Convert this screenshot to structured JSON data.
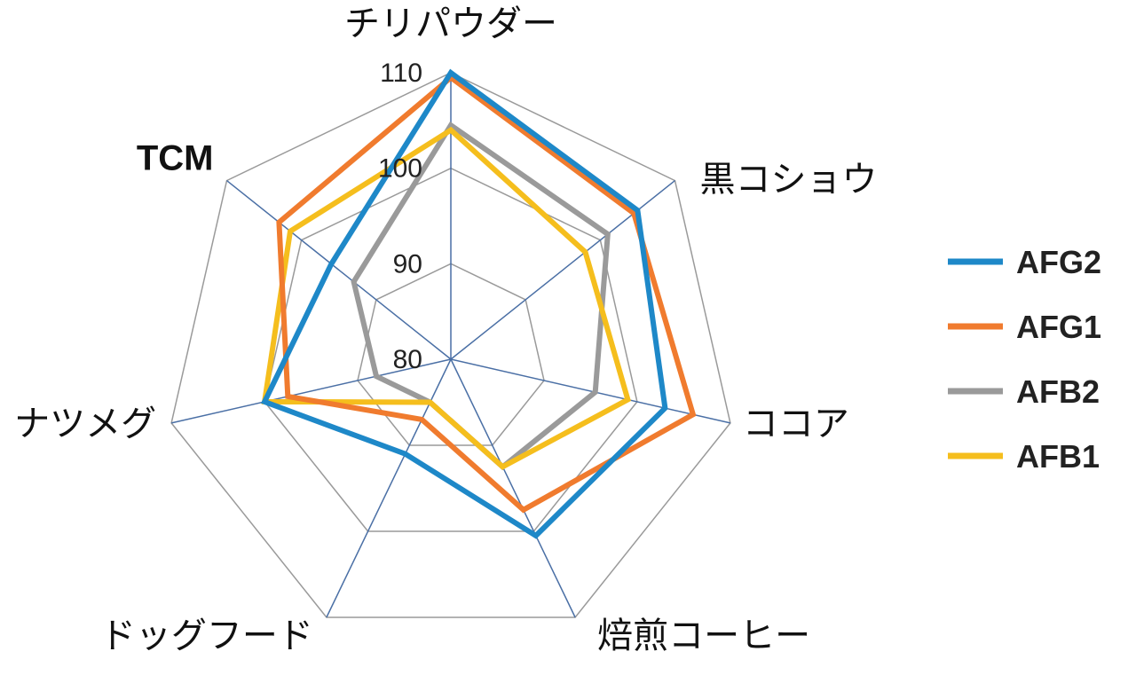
{
  "chart_data": {
    "type": "radar",
    "categories": [
      "チリパウダー",
      "黒コショウ",
      "ココア",
      "焙煎コーヒー",
      "ドッグフード",
      "ナツメグ",
      "TCM"
    ],
    "r_ticks": [
      80,
      90,
      100,
      110
    ],
    "rlim": [
      80,
      110
    ],
    "grid": true,
    "legend_position": "right",
    "series": [
      {
        "name": "AFG2",
        "color": "#1E88C8",
        "values": [
          110,
          105,
          103,
          100.5,
          91,
          100,
          96
        ]
      },
      {
        "name": "AFG1",
        "color": "#F07B2E",
        "values": [
          109.5,
          104.5,
          106,
          97.5,
          87,
          97.5,
          103
        ]
      },
      {
        "name": "AFB2",
        "color": "#9A9A9A",
        "values": [
          104.5,
          101,
          95.5,
          92.5,
          85,
          88,
          93
        ]
      },
      {
        "name": "AFB1",
        "color": "#F5BE1D",
        "values": [
          104,
          98,
          99,
          92.5,
          85,
          100,
          101.5
        ]
      }
    ]
  }
}
